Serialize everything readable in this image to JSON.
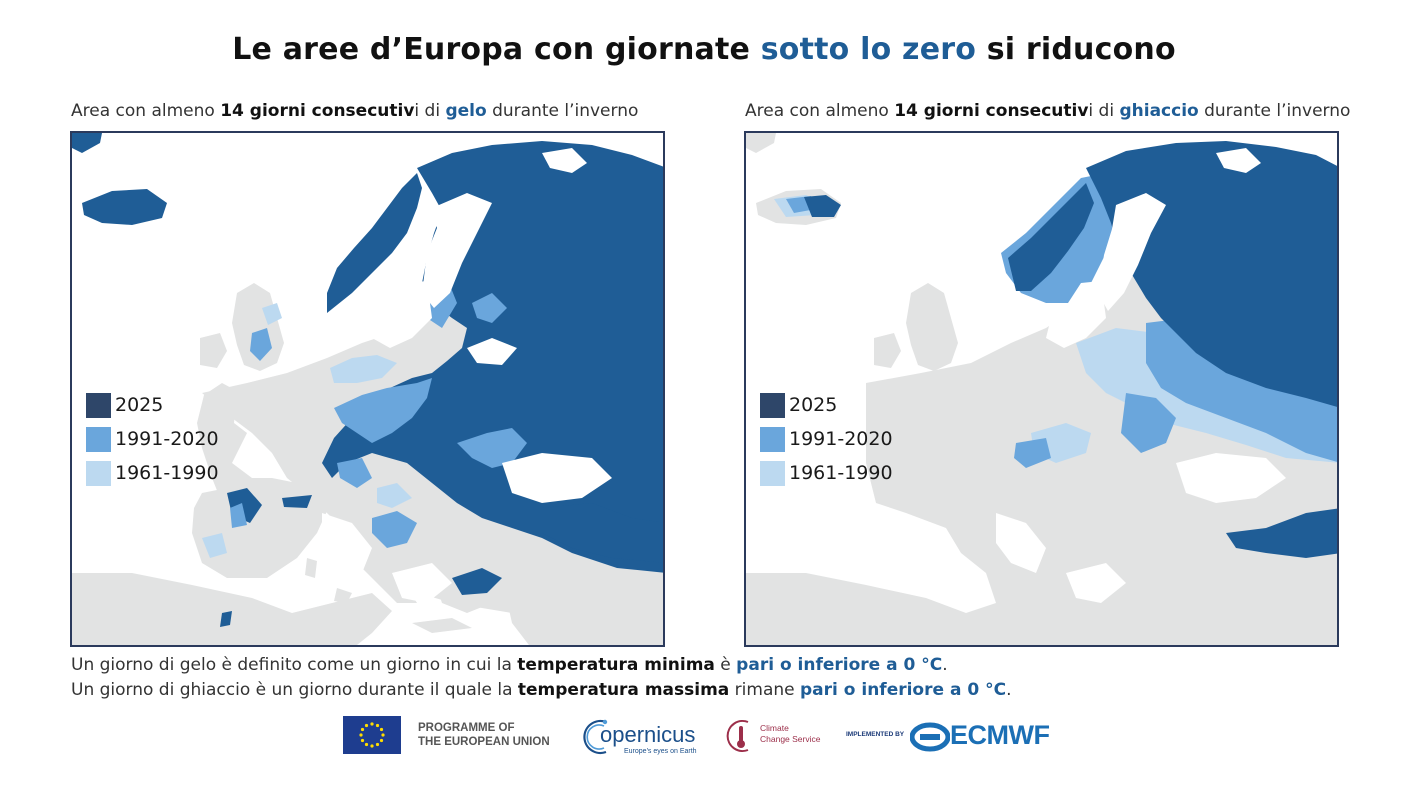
{
  "title": {
    "part1": "Le aree d’Europa con giornate ",
    "highlight": "sotto lo zero",
    "part2": " si riducono"
  },
  "map_left": {
    "subtitle": {
      "t1": "Area con almeno ",
      "b1": "14 giorni consecutiv",
      "t2": "i di ",
      "hl": "gelo",
      "t3": " durante l’inverno"
    }
  },
  "map_right": {
    "subtitle": {
      "t1": "Area con almeno ",
      "b1": "14 giorni consecutiv",
      "t2": "i di ",
      "hl": "ghiaccio",
      "t3": " durante l’inverno"
    }
  },
  "legend": [
    {
      "label": "2025",
      "color": "#2e4669"
    },
    {
      "label": "1991-2020",
      "color": "#6aa6dc"
    },
    {
      "label": "1961-1990",
      "color": "#bcd9f0"
    }
  ],
  "map_colors": {
    "land": "#e2e3e3",
    "sea": "#ffffff",
    "extent": "#1f5d96",
    "period_1991_2020": "#6aa6dc",
    "period_1961_1990": "#bcd9f0"
  },
  "notes": {
    "line1": {
      "t1": "Un giorno di gelo è definito come un giorno in cui la ",
      "b1": "temperatura minima",
      "t2": " è ",
      "hl": "pari o inferiore a 0 °C",
      "t3": "."
    },
    "line2": {
      "t1": "Un giorno di ghiaccio è un giorno durante il quale la ",
      "b1": "temperatura massima",
      "t2": " rimane ",
      "hl": "pari o inferiore a 0 °C",
      "t3": "."
    }
  },
  "footer": {
    "eu_line1": "PROGRAMME OF",
    "eu_line2": "THE EUROPEAN UNION",
    "copernicus": "opernicus",
    "copernicus_tag": "Europe's eyes on Earth",
    "c3s_line1": "Climate",
    "c3s_line2": "Change Service",
    "implemented": "IMPLEMENTED BY",
    "ecmwf": "ECMWF"
  }
}
